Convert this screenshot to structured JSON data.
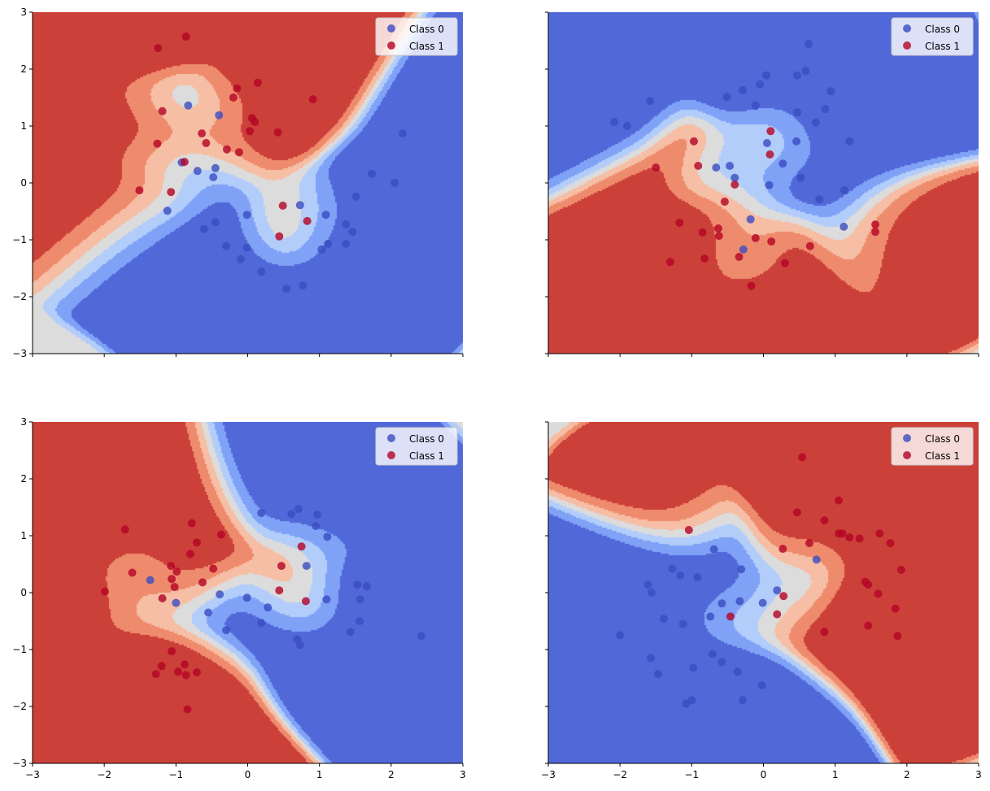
{
  "colors": {
    "levels": [
      "#5068d8",
      "#7fa2f7",
      "#b3cdfb",
      "#dddcdc",
      "#f6bea4",
      "#ef8b6d",
      "#cc403a"
    ],
    "class0": "#3b4cc0",
    "class1": "#b40426"
  },
  "chart_data": [
    {
      "type": "scatter",
      "background": "decision-region contour (coolwarm)",
      "xlim": [
        -3,
        3
      ],
      "ylim": [
        -3,
        3
      ],
      "xticks": [
        -3,
        -2,
        -1,
        0,
        1,
        2,
        3
      ],
      "yticks": [
        -3,
        -2,
        -1,
        0,
        1,
        2,
        3
      ],
      "show_xticklabels": false,
      "show_yticklabels": true,
      "xticklabels": [
        "−3",
        "−2",
        "−1",
        "0",
        "1",
        "2",
        "3"
      ],
      "yticklabels": [
        "−3",
        "−2",
        "−1",
        "0",
        "1",
        "2",
        "3"
      ],
      "legend": {
        "location": "upper right",
        "entries": [
          "Class 0",
          "Class 1"
        ]
      },
      "class0": [
        [
          -0.83,
          1.36
        ],
        [
          -0.4,
          1.19
        ],
        [
          -0.92,
          0.36
        ],
        [
          -0.7,
          0.21
        ],
        [
          -0.45,
          0.26
        ],
        [
          -0.48,
          0.1
        ],
        [
          -1.12,
          -0.49
        ],
        [
          -0.01,
          -0.56
        ],
        [
          -0.45,
          -0.69
        ],
        [
          -0.61,
          -0.81
        ],
        [
          -0.3,
          -1.11
        ],
        [
          -0.01,
          -1.14
        ],
        [
          -0.1,
          -1.34
        ],
        [
          0.19,
          -1.56
        ],
        [
          0.54,
          -1.86
        ],
        [
          0.77,
          -1.8
        ],
        [
          0.73,
          -0.39
        ],
        [
          1.09,
          -0.56
        ],
        [
          1.37,
          -0.73
        ],
        [
          1.46,
          -0.86
        ],
        [
          1.37,
          -1.07
        ],
        [
          1.12,
          -1.07
        ],
        [
          1.03,
          -1.17
        ],
        [
          1.51,
          -0.24
        ],
        [
          1.73,
          0.16
        ],
        [
          2.05,
          0.0
        ],
        [
          2.16,
          0.87
        ]
      ],
      "class1": [
        [
          -0.86,
          2.57
        ],
        [
          -1.25,
          2.37
        ],
        [
          -1.19,
          1.26
        ],
        [
          -1.26,
          0.69
        ],
        [
          -1.51,
          -0.13
        ],
        [
          -1.07,
          -0.16
        ],
        [
          -0.88,
          0.37
        ],
        [
          -0.64,
          0.87
        ],
        [
          -0.58,
          0.7
        ],
        [
          -0.29,
          0.59
        ],
        [
          -0.12,
          0.54
        ],
        [
          -0.2,
          1.5
        ],
        [
          -0.15,
          1.66
        ],
        [
          0.14,
          1.76
        ],
        [
          0.06,
          1.14
        ],
        [
          0.1,
          1.07
        ],
        [
          0.03,
          0.91
        ],
        [
          0.42,
          0.89
        ],
        [
          0.91,
          1.47
        ],
        [
          0.49,
          -0.4
        ],
        [
          0.83,
          -0.67
        ],
        [
          0.44,
          -0.94
        ]
      ]
    },
    {
      "type": "scatter",
      "background": "decision-region contour (coolwarm)",
      "xlim": [
        -3,
        3
      ],
      "ylim": [
        -3,
        3
      ],
      "xticks": [
        -3,
        -2,
        -1,
        0,
        1,
        2,
        3
      ],
      "yticks": [
        -3,
        -2,
        -1,
        0,
        1,
        2,
        3
      ],
      "show_xticklabels": false,
      "show_yticklabels": false,
      "xticklabels": [
        "−3",
        "−2",
        "−1",
        "0",
        "1",
        "2",
        "3"
      ],
      "yticklabels": [
        "−3",
        "−2",
        "−1",
        "0",
        "1",
        "2",
        "3"
      ],
      "legend": {
        "location": "upper right",
        "entries": [
          "Class 0",
          "Class 1"
        ]
      },
      "class0": [
        [
          0.63,
          2.44
        ],
        [
          0.59,
          1.97
        ],
        [
          0.47,
          1.89
        ],
        [
          0.04,
          1.89
        ],
        [
          -0.05,
          1.73
        ],
        [
          -0.29,
          1.63
        ],
        [
          -0.51,
          1.51
        ],
        [
          -0.11,
          1.36
        ],
        [
          -1.58,
          1.44
        ],
        [
          -2.08,
          1.07
        ],
        [
          -1.9,
          1.0
        ],
        [
          0.94,
          1.61
        ],
        [
          0.86,
          1.3
        ],
        [
          0.47,
          1.24
        ],
        [
          0.73,
          1.06
        ],
        [
          0.46,
          0.73
        ],
        [
          1.2,
          0.73
        ],
        [
          0.05,
          0.7
        ],
        [
          0.27,
          0.34
        ],
        [
          0.52,
          0.09
        ],
        [
          -0.66,
          0.27
        ],
        [
          -0.47,
          0.3
        ],
        [
          -0.4,
          0.09
        ],
        [
          0.08,
          -0.04
        ],
        [
          1.13,
          -0.13
        ],
        [
          0.78,
          -0.29
        ],
        [
          -0.18,
          -0.64
        ],
        [
          1.12,
          -0.77
        ],
        [
          -0.28,
          -1.17
        ]
      ],
      "class1": [
        [
          0.1,
          0.91
        ],
        [
          -0.97,
          0.73
        ],
        [
          0.09,
          0.5
        ],
        [
          -1.5,
          0.27
        ],
        [
          -0.91,
          0.3
        ],
        [
          -0.4,
          -0.03
        ],
        [
          -0.54,
          -0.33
        ],
        [
          -1.17,
          -0.7
        ],
        [
          -0.63,
          -0.8
        ],
        [
          -0.85,
          -0.87
        ],
        [
          -0.62,
          -0.93
        ],
        [
          -0.11,
          -0.97
        ],
        [
          0.11,
          -1.03
        ],
        [
          0.65,
          -1.11
        ],
        [
          1.56,
          -0.73
        ],
        [
          1.56,
          -0.86
        ],
        [
          -1.3,
          -1.39
        ],
        [
          -0.82,
          -1.33
        ],
        [
          -0.34,
          -1.3
        ],
        [
          0.3,
          -1.41
        ],
        [
          -0.17,
          -1.81
        ]
      ]
    },
    {
      "type": "scatter",
      "background": "decision-region contour (coolwarm)",
      "xlim": [
        -3,
        3
      ],
      "ylim": [
        -3,
        3
      ],
      "xticks": [
        -3,
        -2,
        -1,
        0,
        1,
        2,
        3
      ],
      "yticks": [
        -3,
        -2,
        -1,
        0,
        1,
        2,
        3
      ],
      "show_xticklabels": true,
      "show_yticklabels": true,
      "xticklabels": [
        "−3",
        "−2",
        "−1",
        "0",
        "1",
        "2",
        "3"
      ],
      "yticklabels": [
        "−3",
        "−2",
        "−1",
        "0",
        "1",
        "2",
        "3"
      ],
      "legend": {
        "location": "upper right",
        "entries": [
          "Class 0",
          "Class 1"
        ]
      },
      "class0": [
        [
          0.19,
          1.4
        ],
        [
          0.61,
          1.38
        ],
        [
          0.71,
          1.47
        ],
        [
          0.97,
          1.37
        ],
        [
          0.95,
          1.17
        ],
        [
          1.11,
          0.98
        ],
        [
          0.82,
          0.47
        ],
        [
          -1.36,
          0.22
        ],
        [
          -1.0,
          -0.18
        ],
        [
          -0.39,
          -0.03
        ],
        [
          -0.01,
          -0.09
        ],
        [
          0.28,
          -0.26
        ],
        [
          -0.55,
          -0.35
        ],
        [
          0.19,
          -0.53
        ],
        [
          -0.3,
          -0.66
        ],
        [
          0.69,
          -0.82
        ],
        [
          0.73,
          -0.92
        ],
        [
          1.1,
          -0.12
        ],
        [
          1.53,
          0.14
        ],
        [
          1.66,
          0.11
        ],
        [
          1.57,
          -0.12
        ],
        [
          1.56,
          -0.5
        ],
        [
          1.43,
          -0.69
        ],
        [
          2.42,
          -0.76
        ]
      ],
      "class1": [
        [
          -1.71,
          1.11
        ],
        [
          -0.78,
          1.22
        ],
        [
          -0.37,
          1.02
        ],
        [
          -0.71,
          0.88
        ],
        [
          -0.8,
          0.68
        ],
        [
          -1.07,
          0.47
        ],
        [
          -0.99,
          0.37
        ],
        [
          -1.61,
          0.35
        ],
        [
          -1.06,
          0.24
        ],
        [
          -1.02,
          0.1
        ],
        [
          -0.63,
          0.18
        ],
        [
          -0.48,
          0.42
        ],
        [
          -1.99,
          0.02
        ],
        [
          -1.19,
          -0.1
        ],
        [
          0.47,
          0.47
        ],
        [
          0.75,
          0.81
        ],
        [
          0.44,
          0.04
        ],
        [
          0.81,
          -0.15
        ],
        [
          -1.06,
          -1.03
        ],
        [
          -1.2,
          -1.29
        ],
        [
          -1.28,
          -1.43
        ],
        [
          -0.97,
          -1.39
        ],
        [
          -0.88,
          -1.26
        ],
        [
          -0.86,
          -1.45
        ],
        [
          -0.71,
          -1.4
        ],
        [
          -0.84,
          -2.05
        ]
      ]
    },
    {
      "type": "scatter",
      "background": "decision-region contour (coolwarm)",
      "xlim": [
        -3,
        3
      ],
      "ylim": [
        -3,
        3
      ],
      "xticks": [
        -3,
        -2,
        -1,
        0,
        1,
        2,
        3
      ],
      "yticks": [
        -3,
        -2,
        -1,
        0,
        1,
        2,
        3
      ],
      "show_xticklabels": true,
      "show_yticklabels": false,
      "xticklabels": [
        "−3",
        "−2",
        "−1",
        "0",
        "1",
        "2",
        "3"
      ],
      "yticklabels": [
        "−3",
        "−2",
        "−1",
        "0",
        "1",
        "2",
        "3"
      ],
      "legend": {
        "location": "upper right",
        "entries": [
          "Class 0",
          "Class 1"
        ]
      },
      "class0": [
        [
          -0.69,
          0.76
        ],
        [
          -0.31,
          0.41
        ],
        [
          -1.27,
          0.42
        ],
        [
          -1.16,
          0.3
        ],
        [
          -0.92,
          0.27
        ],
        [
          -1.61,
          0.14
        ],
        [
          -1.56,
          0.0
        ],
        [
          -0.58,
          -0.19
        ],
        [
          -0.33,
          -0.15
        ],
        [
          -0.01,
          -0.18
        ],
        [
          0.19,
          0.04
        ],
        [
          0.74,
          0.58
        ],
        [
          -0.74,
          -0.42
        ],
        [
          -1.39,
          -0.46
        ],
        [
          -1.12,
          -0.55
        ],
        [
          -2.0,
          -0.75
        ],
        [
          -1.57,
          -1.15
        ],
        [
          -0.71,
          -1.08
        ],
        [
          -0.58,
          -1.22
        ],
        [
          -0.98,
          -1.32
        ],
        [
          -1.47,
          -1.43
        ],
        [
          -0.36,
          -1.39
        ],
        [
          -0.02,
          -1.63
        ],
        [
          -1.0,
          -1.89
        ],
        [
          -1.08,
          -1.95
        ],
        [
          -0.29,
          -1.89
        ]
      ],
      "class1": [
        [
          0.54,
          2.38
        ],
        [
          1.05,
          1.62
        ],
        [
          0.47,
          1.41
        ],
        [
          0.85,
          1.27
        ],
        [
          1.05,
          1.04
        ],
        [
          1.1,
          1.04
        ],
        [
          1.2,
          0.97
        ],
        [
          1.34,
          0.95
        ],
        [
          1.62,
          1.04
        ],
        [
          1.77,
          0.87
        ],
        [
          0.64,
          0.87
        ],
        [
          0.27,
          0.77
        ],
        [
          -1.04,
          1.1
        ],
        [
          1.92,
          0.4
        ],
        [
          1.42,
          0.19
        ],
        [
          1.46,
          0.14
        ],
        [
          1.6,
          -0.02
        ],
        [
          0.28,
          -0.06
        ],
        [
          1.84,
          -0.28
        ],
        [
          0.19,
          -0.38
        ],
        [
          -0.46,
          -0.42
        ],
        [
          1.46,
          -0.58
        ],
        [
          0.85,
          -0.69
        ],
        [
          1.87,
          -0.76
        ]
      ]
    }
  ]
}
